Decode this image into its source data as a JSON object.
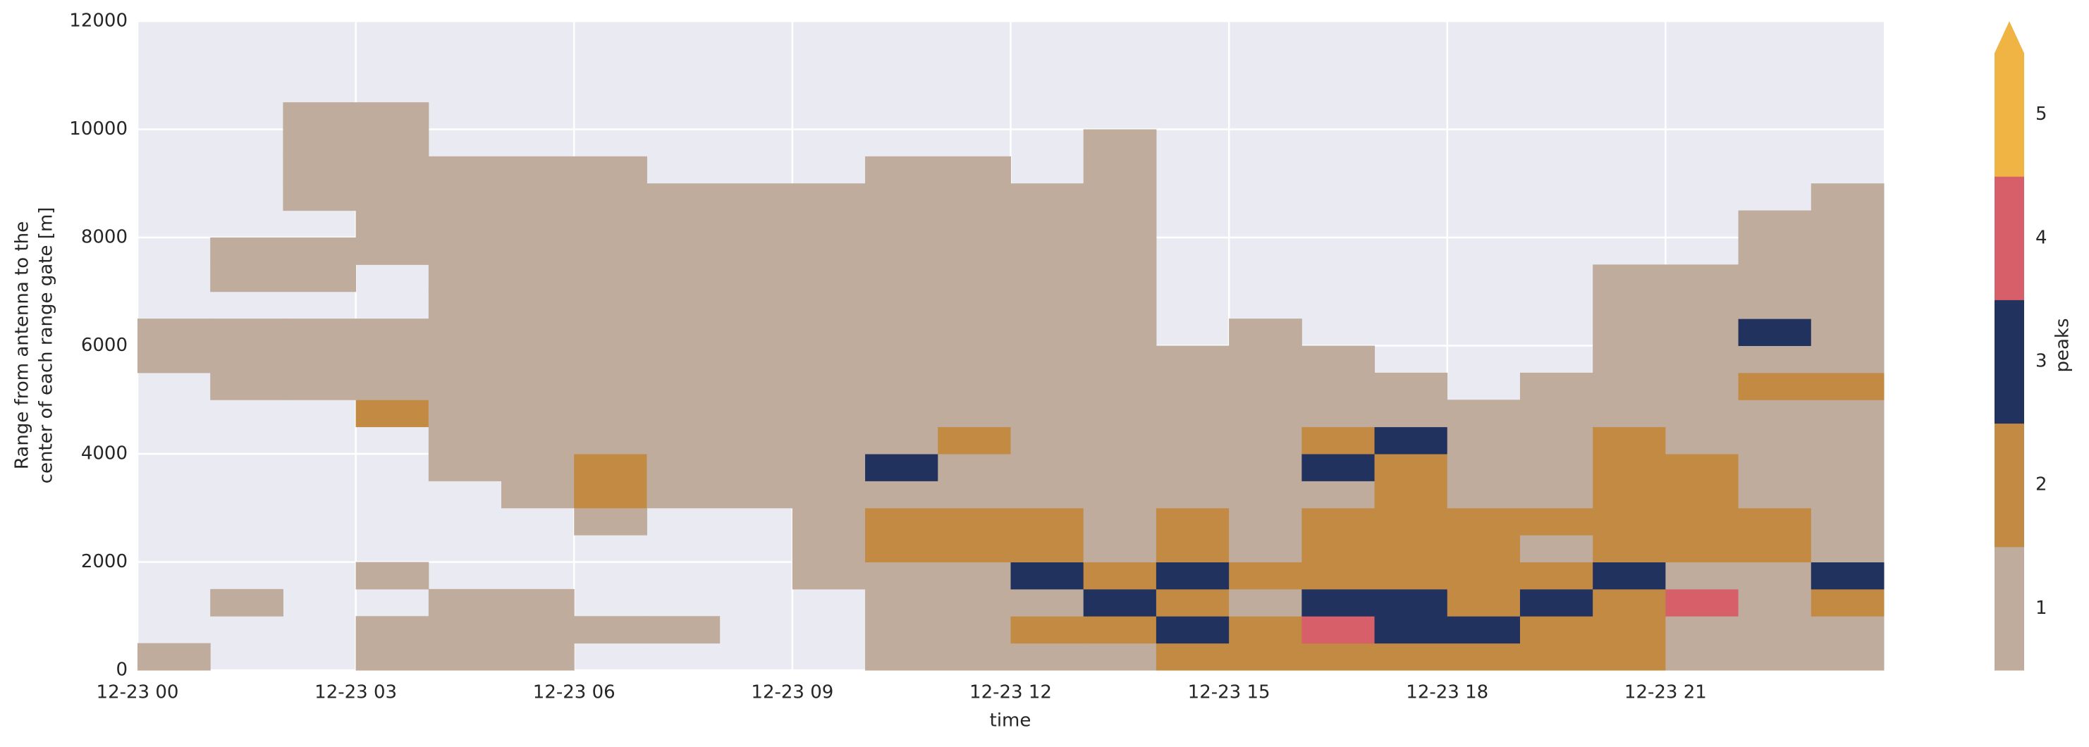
{
  "chart_data": {
    "type": "heatmap",
    "xlabel": "time",
    "ylabel": [
      "Range from antenna to the",
      "center of each range gate [m]"
    ],
    "xlim": [
      0,
      24
    ],
    "xticks": [
      {
        "value": 0,
        "label": "12-23 00"
      },
      {
        "value": 3,
        "label": "12-23 03"
      },
      {
        "value": 6,
        "label": "12-23 06"
      },
      {
        "value": 9,
        "label": "12-23 09"
      },
      {
        "value": 12,
        "label": "12-23 12"
      },
      {
        "value": 15,
        "label": "12-23 15"
      },
      {
        "value": 18,
        "label": "12-23 18"
      },
      {
        "value": 21,
        "label": "12-23 21"
      }
    ],
    "ylim": [
      0,
      12000
    ],
    "yticks": [
      0,
      2000,
      4000,
      6000,
      8000,
      10000,
      12000
    ],
    "grid": true,
    "colorbar": {
      "label": "peaks",
      "ticks": [
        1,
        2,
        3,
        4,
        5
      ],
      "colors": [
        "#bfac9c",
        "#c28a42",
        "#22325e",
        "#d65f6a",
        "#f0b445"
      ],
      "extend": "max"
    },
    "z": [
      [
        1,
        null,
        null,
        null,
        null,
        null,
        null,
        null,
        null,
        null,
        null,
        1,
        1,
        null,
        null,
        null,
        null,
        null,
        null,
        null,
        null,
        null,
        null,
        null
      ],
      [
        null,
        null,
        1,
        null,
        null,
        null,
        null,
        null,
        null,
        null,
        1,
        1,
        1,
        null,
        1,
        1,
        null,
        null,
        null,
        null,
        null,
        null,
        null,
        null
      ],
      [
        null,
        null,
        null,
        null,
        null,
        null,
        null,
        null,
        null,
        null,
        1,
        1,
        1,
        null,
        1,
        1,
        null,
        1,
        1,
        1,
        1,
        null,
        null,
        null
      ],
      [
        1,
        1,
        null,
        1,
        null,
        null,
        null,
        null,
        null,
        2,
        1,
        1,
        1,
        null,
        null,
        1,
        1,
        1,
        1,
        1,
        1,
        null,
        null,
        null
      ],
      [
        1,
        1,
        1,
        null,
        null,
        null,
        null,
        1,
        1,
        1,
        1,
        1,
        1,
        1,
        1,
        1,
        1,
        1,
        1,
        null,
        null,
        null,
        null,
        null
      ],
      [
        1,
        1,
        1,
        null,
        null,
        null,
        1,
        1,
        1,
        1,
        1,
        1,
        1,
        1,
        1,
        1,
        1,
        1,
        1,
        null,
        null,
        null,
        null,
        null
      ],
      [
        null,
        1,
        null,
        null,
        null,
        1,
        2,
        2,
        1,
        1,
        1,
        1,
        1,
        1,
        1,
        1,
        1,
        1,
        1,
        null,
        null,
        null,
        null,
        null
      ],
      [
        null,
        1,
        null,
        null,
        null,
        null,
        1,
        1,
        1,
        1,
        1,
        1,
        1,
        1,
        1,
        1,
        1,
        1,
        null,
        null,
        null,
        null,
        null,
        null
      ],
      [
        null,
        null,
        null,
        null,
        null,
        null,
        1,
        1,
        1,
        1,
        1,
        1,
        1,
        1,
        1,
        1,
        1,
        1,
        null,
        null,
        null,
        null,
        null,
        null
      ],
      [
        null,
        null,
        null,
        1,
        1,
        1,
        1,
        1,
        1,
        1,
        1,
        1,
        1,
        1,
        1,
        1,
        1,
        1,
        null,
        null,
        null,
        null,
        null,
        null
      ],
      [
        1,
        1,
        1,
        1,
        2,
        2,
        1,
        3,
        1,
        1,
        1,
        1,
        1,
        1,
        1,
        1,
        1,
        1,
        1,
        null,
        null,
        null,
        null,
        null
      ],
      [
        1,
        1,
        1,
        1,
        2,
        2,
        1,
        1,
        2,
        1,
        1,
        1,
        1,
        1,
        1,
        1,
        1,
        1,
        1,
        null,
        null,
        null,
        null,
        null
      ],
      [
        1,
        2,
        1,
        3,
        2,
        2,
        1,
        1,
        1,
        1,
        1,
        1,
        1,
        1,
        1,
        1,
        1,
        1,
        null,
        null,
        null,
        null,
        null,
        null
      ],
      [
        1,
        2,
        3,
        2,
        1,
        1,
        1,
        1,
        1,
        1,
        1,
        1,
        1,
        1,
        1,
        1,
        1,
        1,
        1,
        1,
        null,
        null,
        null,
        null
      ],
      [
        2,
        3,
        2,
        3,
        2,
        2,
        1,
        1,
        1,
        1,
        1,
        1,
        null,
        null,
        null,
        null,
        null,
        null,
        null,
        null,
        null,
        null,
        null,
        null
      ],
      [
        2,
        2,
        1,
        2,
        1,
        1,
        1,
        1,
        1,
        1,
        1,
        1,
        1,
        null,
        null,
        null,
        null,
        null,
        null,
        null,
        null,
        null,
        null,
        null
      ],
      [
        2,
        4,
        3,
        2,
        2,
        2,
        1,
        3,
        2,
        1,
        1,
        1,
        null,
        null,
        null,
        null,
        null,
        null,
        null,
        null,
        null,
        null,
        null,
        null
      ],
      [
        2,
        3,
        3,
        2,
        2,
        2,
        2,
        2,
        3,
        1,
        1,
        null,
        null,
        null,
        null,
        null,
        null,
        null,
        null,
        null,
        null,
        null,
        null,
        null
      ],
      [
        2,
        3,
        2,
        2,
        2,
        2,
        1,
        1,
        1,
        1,
        null,
        null,
        null,
        null,
        null,
        null,
        null,
        null,
        null,
        null,
        null,
        null,
        null,
        null
      ],
      [
        2,
        2,
        3,
        2,
        1,
        2,
        1,
        1,
        1,
        1,
        1,
        null,
        null,
        null,
        null,
        null,
        null,
        null,
        null,
        null,
        null,
        null,
        null,
        null
      ],
      [
        2,
        2,
        2,
        3,
        2,
        2,
        2,
        2,
        2,
        1,
        1,
        1,
        1,
        1,
        1,
        null,
        null,
        null,
        null,
        null,
        null,
        null,
        null,
        null
      ],
      [
        1,
        1,
        4,
        1,
        2,
        2,
        2,
        2,
        1,
        1,
        1,
        1,
        1,
        1,
        1,
        null,
        null,
        null,
        null,
        null,
        null,
        null,
        null,
        null
      ],
      [
        1,
        1,
        1,
        1,
        2,
        2,
        1,
        1,
        1,
        1,
        2,
        1,
        3,
        1,
        1,
        1,
        1,
        null,
        null,
        null,
        null,
        null,
        null,
        null
      ],
      [
        1,
        1,
        2,
        3,
        1,
        1,
        1,
        1,
        1,
        1,
        2,
        1,
        1,
        1,
        1,
        1,
        1,
        1,
        null,
        null,
        null,
        null,
        null,
        null
      ]
    ]
  }
}
